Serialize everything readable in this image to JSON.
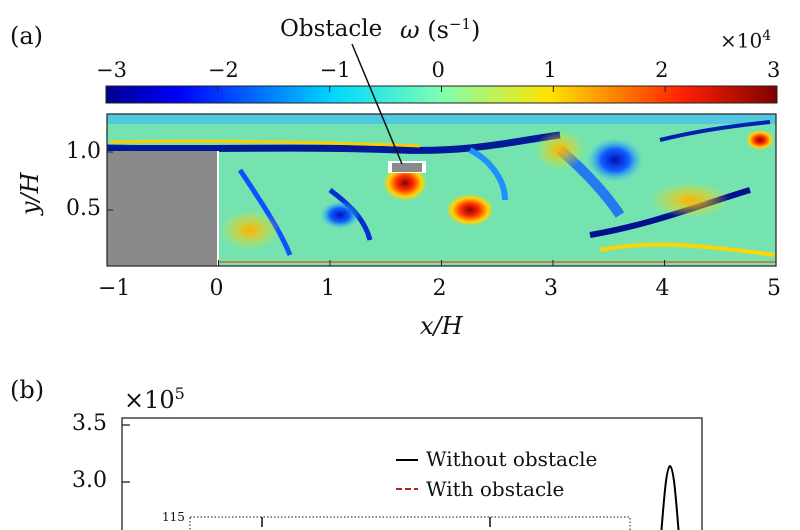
{
  "panel_a": {
    "label": "(a)",
    "obstacle_label": "Obstacle",
    "colorbar_symbol": "ω",
    "colorbar_unit": "(s",
    "colorbar_unit_exp": "−1",
    "colorbar_unit_close": ")",
    "colorbar_multiplier": "×10",
    "colorbar_multiplier_exp": "4",
    "colorbar_ticks": [
      "−3",
      "−2",
      "−1",
      "0",
      "1",
      "2",
      "3"
    ],
    "colors": {
      "obstacle_fill": "#8a8a8a",
      "field_base": "#74e3b0",
      "cmap_low": "#00008b",
      "cmap_mid": "#7fffd4",
      "cmap_high": "#8b0000"
    }
  },
  "panel_b": {
    "label": "(b)",
    "multiplier": "×10",
    "multiplier_exp": "5",
    "inset_tick": "115",
    "legend": [
      {
        "name": "Without obstacle",
        "color": "#000000",
        "dash": false
      },
      {
        "name": "With obstacle",
        "color": "#b22222",
        "dash": true
      }
    ]
  },
  "chart_data": [
    {
      "type": "heatmap",
      "title": "",
      "xlabel": "x/H",
      "ylabel": "y/H",
      "x_ticks": [
        "−1",
        "0",
        "1",
        "2",
        "3",
        "4",
        "5"
      ],
      "y_ticks": [
        "0.5",
        "1.0"
      ],
      "xlim": [
        -1,
        5
      ],
      "ylim": [
        0,
        1.3
      ],
      "colorbar_range": [
        -3,
        3
      ],
      "colorbar_scale": "×10^4",
      "step_region": {
        "x": [
          -1,
          0
        ],
        "y": [
          0,
          1.0
        ]
      },
      "obstacle": {
        "x": [
          1.5,
          1.85
        ],
        "y": [
          0.88,
          0.98
        ]
      }
    },
    {
      "type": "line",
      "title": "",
      "y_ticks": [
        "3.5",
        "3.0"
      ],
      "y_scale": "×10^5",
      "series": [
        {
          "name": "Without obstacle",
          "peak_y": 3.12
        },
        {
          "name": "With obstacle"
        }
      ]
    }
  ]
}
